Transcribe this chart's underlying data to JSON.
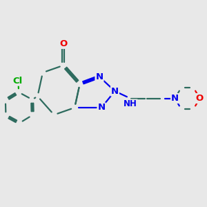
{
  "bg_color": "#e8e8e8",
  "bond_color": "#2d6b5e",
  "N_color": "#0000ee",
  "O_color": "#ee0000",
  "Cl_color": "#00aa00",
  "line_width": 1.6,
  "font_size": 9.5,
  "figsize": [
    3.0,
    3.0
  ],
  "dpi": 100,
  "xlim": [
    0,
    10
  ],
  "ylim": [
    0,
    10
  ]
}
